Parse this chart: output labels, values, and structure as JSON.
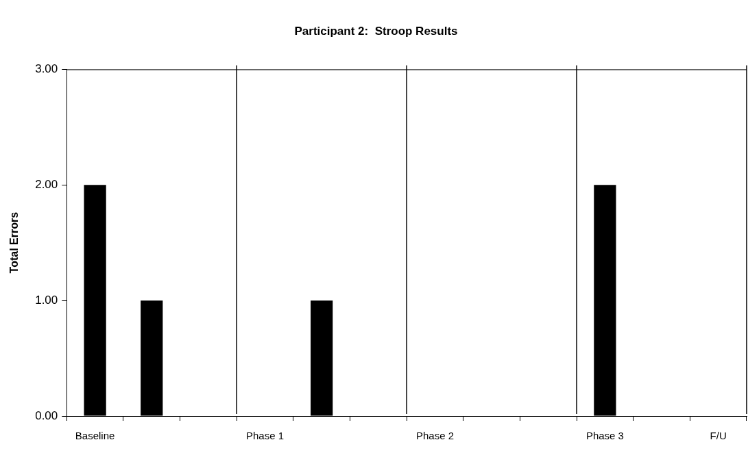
{
  "chart_data": {
    "type": "bar",
    "title": "Participant 2:  Stroop Results",
    "ylabel": "Total Errors",
    "categories": [
      "Baseline",
      null,
      null,
      "Phase 1",
      null,
      null,
      "Phase 2",
      null,
      null,
      "Phase 3",
      null,
      "F/U"
    ],
    "values": [
      2,
      1,
      0,
      0,
      1,
      0,
      0,
      0,
      0,
      2,
      0,
      0
    ],
    "color": "#000000",
    "ylim": [
      0,
      3
    ],
    "yticks": [
      {
        "value": 0,
        "label": "0.00"
      },
      {
        "value": 1,
        "label": "1.00"
      },
      {
        "value": 2,
        "label": "2.00"
      },
      {
        "value": 3,
        "label": "3.00"
      }
    ],
    "grid": false,
    "legend": false
  }
}
